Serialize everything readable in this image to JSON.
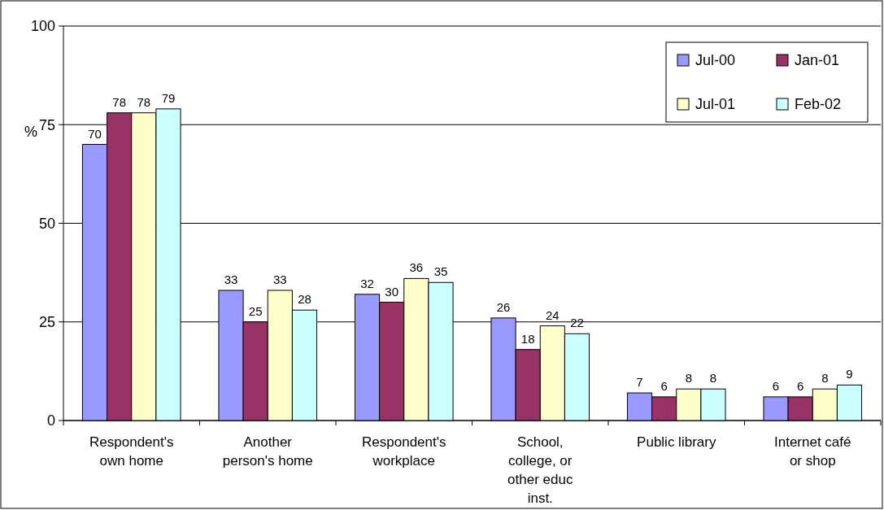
{
  "chart_data": {
    "type": "bar",
    "ylabel": "%",
    "categories": [
      "Respondent's own home",
      "Another person's home",
      "Respondent's workplace",
      "School, college,  or other educ inst.",
      "Public library",
      "Internet café or shop"
    ],
    "series": [
      {
        "name": "Jul-00",
        "color": "#9999ff",
        "values": [
          70,
          33,
          32,
          26,
          7,
          6
        ]
      },
      {
        "name": "Jan-01",
        "color": "#993366",
        "values": [
          78,
          25,
          30,
          18,
          6,
          6
        ]
      },
      {
        "name": "Jul-01",
        "color": "#ffffcc",
        "values": [
          78,
          33,
          36,
          24,
          8,
          8
        ]
      },
      {
        "name": "Feb-02",
        "color": "#ccffff",
        "values": [
          79,
          28,
          35,
          22,
          8,
          9
        ]
      }
    ],
    "ylim": [
      0,
      100
    ],
    "yticks": [
      0,
      25,
      50,
      75,
      100
    ],
    "grid": "y",
    "legend": "top right",
    "data_labels": true
  }
}
